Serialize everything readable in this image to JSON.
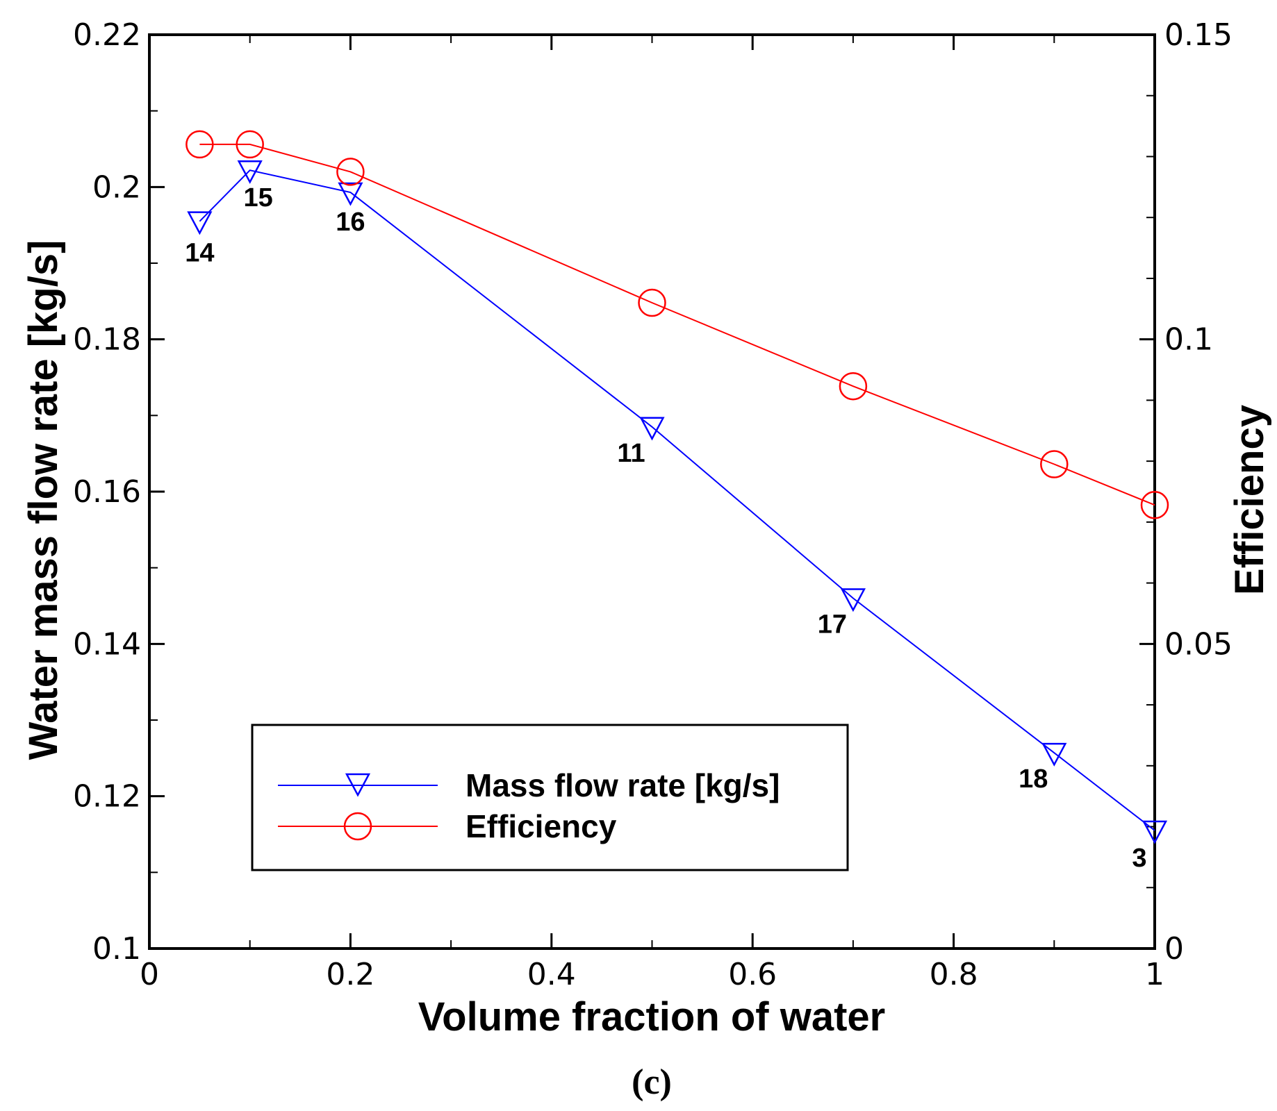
{
  "chart_data": {
    "type": "line",
    "xlabel": "Volume fraction of water",
    "ylabel": "Water mass flow rate [kg/s]",
    "y2label": "Efficiency",
    "caption": "(c)",
    "xlim": [
      0,
      1
    ],
    "ylim": [
      0.1,
      0.22
    ],
    "y2lim": [
      0,
      0.15
    ],
    "x_ticks": [
      "0",
      "0.2",
      "0.4",
      "0.6",
      "0.8",
      "1"
    ],
    "y_ticks": [
      "0.1",
      "0.12",
      "0.14",
      "0.16",
      "0.18",
      "0.2",
      "0.22"
    ],
    "y2_ticks": [
      "0",
      "0.05",
      "0.1",
      "0.15"
    ],
    "grid": false,
    "legend_position": "bottom-left",
    "series": [
      {
        "name": "Mass flow rate [kg/s]",
        "axis": "left",
        "marker": "triangle-down",
        "color": "#0000ff",
        "x": [
          0.05,
          0.1,
          0.2,
          0.5,
          0.7,
          0.9,
          1.0
        ],
        "y": [
          0.1955,
          0.2022,
          0.1993,
          0.1685,
          0.146,
          0.1257,
          0.1155
        ],
        "point_labels": [
          "14",
          "15",
          "16",
          "11",
          "17",
          "18",
          "3"
        ]
      },
      {
        "name": "Efficiency",
        "axis": "right",
        "marker": "circle",
        "color": "#ff0000",
        "x": [
          0.05,
          0.1,
          0.2,
          0.5,
          0.7,
          0.9,
          1.0
        ],
        "y": [
          0.132,
          0.132,
          0.1275,
          0.106,
          0.0923,
          0.0795,
          0.0728
        ]
      }
    ]
  }
}
